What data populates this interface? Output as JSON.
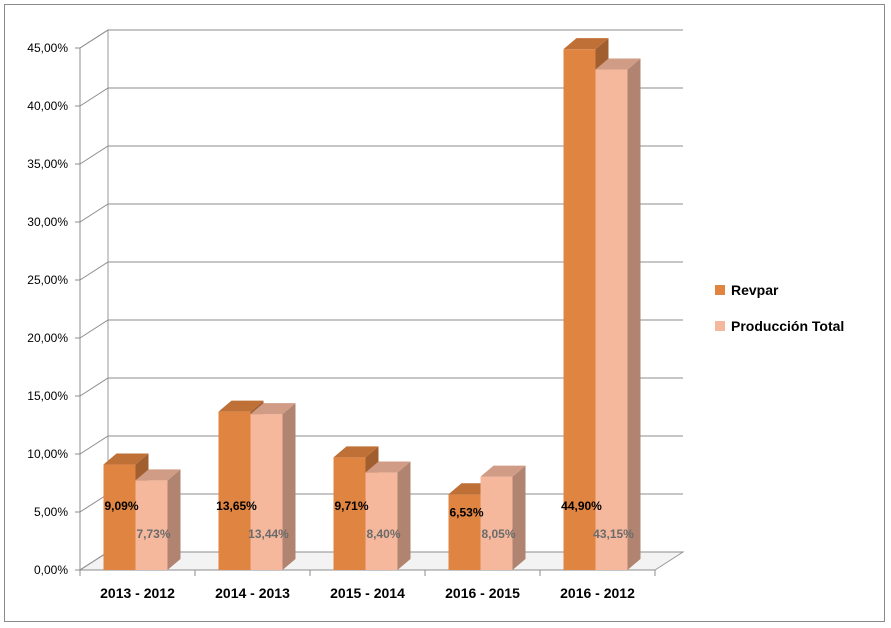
{
  "chart_data": {
    "type": "bar",
    "categories": [
      "2013 - 2012",
      "2014 - 2013",
      "2015 - 2014",
      "2016 - 2015",
      "2016 - 2012"
    ],
    "series": [
      {
        "name": "Revpar",
        "values": [
          9.09,
          13.65,
          9.71,
          6.53,
          44.9
        ],
        "labels": [
          "9,09%",
          "13,65%",
          "9,71%",
          "6,53%",
          "44,90%"
        ],
        "color": "#e08441"
      },
      {
        "name": "Producción Total",
        "values": [
          7.73,
          13.44,
          8.4,
          8.05,
          43.15
        ],
        "labels": [
          "7,73%",
          "13,44%",
          "8,40%",
          "8,05%",
          "43,15%"
        ],
        "color": "#f5b89c"
      }
    ],
    "y_ticks": [
      "0,00%",
      "5,00%",
      "10,00%",
      "15,00%",
      "20,00%",
      "25,00%",
      "30,00%",
      "35,00%",
      "40,00%",
      "45,00%"
    ],
    "ylim": [
      0,
      45
    ],
    "grid": true,
    "legend": "right",
    "style": "3d"
  }
}
